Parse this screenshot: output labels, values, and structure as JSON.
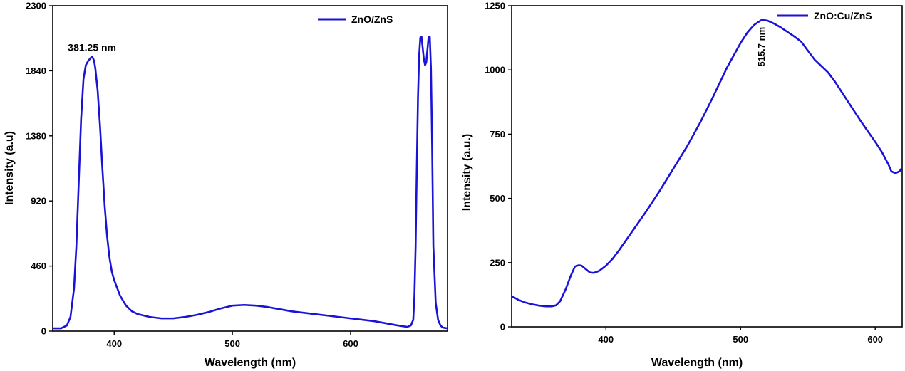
{
  "colors": {
    "series": "#1a12d6",
    "axis": "#000000"
  },
  "chart_data": [
    {
      "type": "line",
      "xlabel": "Wavelength (nm)",
      "ylabel": "Intensity (a.u)",
      "xlim": [
        348,
        682
      ],
      "ylim": [
        0,
        2300
      ],
      "xticks": [
        400,
        500,
        600
      ],
      "yticks": [
        0,
        460,
        920,
        1380,
        1840,
        2300
      ],
      "legend": "top-right",
      "annotations": [
        {
          "text": "381.25 nm",
          "x": 381.25,
          "y": 1940
        }
      ],
      "series": [
        {
          "name": "ZnO/ZnS",
          "x": [
            348,
            355,
            360,
            363,
            366,
            368,
            370,
            372,
            374,
            376,
            378,
            379,
            380,
            381.25,
            382,
            383,
            384,
            386,
            388,
            390,
            392,
            394,
            396,
            398,
            400,
            405,
            410,
            415,
            420,
            430,
            440,
            450,
            460,
            470,
            480,
            490,
            500,
            510,
            520,
            530,
            540,
            550,
            560,
            570,
            580,
            590,
            600,
            610,
            620,
            630,
            640,
            648,
            651,
            653,
            654,
            655,
            656,
            657,
            658,
            659,
            660,
            661,
            662,
            663,
            664,
            665,
            666,
            667,
            668,
            669,
            670,
            672,
            674,
            676,
            678,
            682
          ],
          "y": [
            20,
            20,
            40,
            100,
            300,
            600,
            1050,
            1500,
            1780,
            1880,
            1910,
            1920,
            1930,
            1940,
            1930,
            1910,
            1860,
            1700,
            1450,
            1150,
            880,
            670,
            520,
            420,
            360,
            250,
            180,
            140,
            120,
            100,
            90,
            90,
            100,
            115,
            135,
            160,
            180,
            185,
            180,
            170,
            155,
            140,
            130,
            120,
            110,
            100,
            90,
            80,
            70,
            55,
            40,
            30,
            40,
            80,
            250,
            600,
            1150,
            1650,
            1950,
            2075,
            2080,
            2000,
            1920,
            1880,
            1900,
            1990,
            2080,
            2080,
            1850,
            1300,
            600,
            200,
            80,
            40,
            25,
            20
          ]
        }
      ]
    },
    {
      "type": "line",
      "xlabel": "Wavelength (nm)",
      "ylabel": "Intensity (a.u.)",
      "xlim": [
        330,
        620
      ],
      "ylim": [
        0,
        1250
      ],
      "xticks": [
        400,
        500,
        600
      ],
      "yticks": [
        0,
        250,
        500,
        750,
        1000,
        1250
      ],
      "legend": "top-right",
      "annotations": [
        {
          "text": "515.7 nm",
          "x": 515.7,
          "y": 1195
        }
      ],
      "series": [
        {
          "name": "ZnO:Cu/ZnS",
          "x": [
            330,
            335,
            340,
            345,
            350,
            355,
            360,
            363,
            366,
            370,
            374,
            377,
            380,
            382,
            385,
            388,
            391,
            395,
            400,
            405,
            410,
            420,
            430,
            440,
            450,
            460,
            470,
            480,
            490,
            500,
            505,
            510,
            515.7,
            520,
            525,
            530,
            540,
            545,
            550,
            555,
            560,
            565,
            570,
            580,
            590,
            600,
            605,
            610,
            612,
            615,
            618,
            620
          ],
          "y": [
            120,
            105,
            95,
            88,
            83,
            80,
            80,
            84,
            100,
            145,
            200,
            235,
            240,
            238,
            225,
            212,
            210,
            218,
            238,
            265,
            300,
            375,
            450,
            530,
            615,
            700,
            795,
            900,
            1010,
            1105,
            1145,
            1175,
            1195,
            1192,
            1180,
            1165,
            1130,
            1110,
            1075,
            1040,
            1015,
            990,
            955,
            875,
            795,
            720,
            680,
            630,
            605,
            598,
            605,
            620
          ]
        }
      ]
    }
  ]
}
